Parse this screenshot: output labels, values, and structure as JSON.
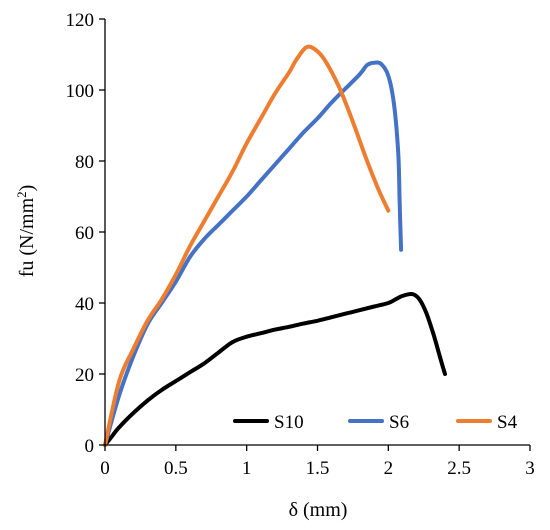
{
  "chart_data": {
    "type": "line",
    "title": "",
    "xlabel": "δ (mm)",
    "ylabel_main": "fu (N/mm",
    "ylabel_sup": "2",
    "ylabel_close": ")",
    "xlim": [
      0,
      3
    ],
    "ylim": [
      0,
      120
    ],
    "xticks": [
      0,
      0.5,
      1,
      1.5,
      2,
      2.5,
      3
    ],
    "xtick_labels": [
      "0",
      "0.5",
      "1",
      "1.5",
      "2",
      "2.5",
      "3"
    ],
    "yticks": [
      0,
      20,
      40,
      60,
      80,
      100,
      120
    ],
    "ytick_labels": [
      "0",
      "20",
      "40",
      "60",
      "80",
      "100",
      "120"
    ],
    "grid": false,
    "legend_position": "bottom-right",
    "series": [
      {
        "name": "S10",
        "color": "#000000",
        "points": [
          [
            0,
            0
          ],
          [
            0.05,
            2.5
          ],
          [
            0.1,
            5
          ],
          [
            0.2,
            9
          ],
          [
            0.3,
            12.5
          ],
          [
            0.4,
            15.5
          ],
          [
            0.5,
            18
          ],
          [
            0.6,
            20.5
          ],
          [
            0.7,
            23
          ],
          [
            0.8,
            26
          ],
          [
            0.9,
            29
          ],
          [
            1.0,
            30.5
          ],
          [
            1.1,
            31.5
          ],
          [
            1.2,
            32.5
          ],
          [
            1.3,
            33.3
          ],
          [
            1.4,
            34.2
          ],
          [
            1.5,
            35
          ],
          [
            1.6,
            36
          ],
          [
            1.7,
            37
          ],
          [
            1.8,
            38
          ],
          [
            1.9,
            39
          ],
          [
            2.0,
            40
          ],
          [
            2.05,
            41
          ],
          [
            2.1,
            42
          ],
          [
            2.17,
            42.5
          ],
          [
            2.22,
            41
          ],
          [
            2.27,
            37
          ],
          [
            2.32,
            31
          ],
          [
            2.37,
            24
          ],
          [
            2.4,
            20
          ]
        ]
      },
      {
        "name": "S6",
        "color": "#4472C4",
        "points": [
          [
            0,
            0
          ],
          [
            0.1,
            14
          ],
          [
            0.2,
            25
          ],
          [
            0.3,
            34
          ],
          [
            0.4,
            40
          ],
          [
            0.5,
            46
          ],
          [
            0.6,
            53
          ],
          [
            0.7,
            58
          ],
          [
            0.8,
            62
          ],
          [
            0.9,
            66
          ],
          [
            1.0,
            70
          ],
          [
            1.1,
            74.5
          ],
          [
            1.2,
            79
          ],
          [
            1.3,
            83.5
          ],
          [
            1.4,
            88
          ],
          [
            1.5,
            92
          ],
          [
            1.6,
            96.5
          ],
          [
            1.7,
            100.5
          ],
          [
            1.8,
            104.5
          ],
          [
            1.85,
            107
          ],
          [
            1.9,
            107.7
          ],
          [
            1.95,
            107.3
          ],
          [
            2.0,
            104
          ],
          [
            2.04,
            96
          ],
          [
            2.07,
            82
          ],
          [
            2.08,
            68
          ],
          [
            2.09,
            55
          ]
        ]
      },
      {
        "name": "S4",
        "color": "#ED7D31",
        "points": [
          [
            0,
            0
          ],
          [
            0.1,
            18
          ],
          [
            0.2,
            27
          ],
          [
            0.3,
            35
          ],
          [
            0.4,
            41
          ],
          [
            0.5,
            48
          ],
          [
            0.6,
            56
          ],
          [
            0.7,
            63
          ],
          [
            0.8,
            70
          ],
          [
            0.9,
            77
          ],
          [
            1.0,
            85
          ],
          [
            1.1,
            92
          ],
          [
            1.2,
            99
          ],
          [
            1.3,
            105
          ],
          [
            1.35,
            108.5
          ],
          [
            1.42,
            112
          ],
          [
            1.48,
            111.5
          ],
          [
            1.55,
            108.5
          ],
          [
            1.65,
            101
          ],
          [
            1.75,
            91
          ],
          [
            1.85,
            80
          ],
          [
            1.93,
            72
          ],
          [
            2.0,
            66
          ]
        ]
      }
    ]
  }
}
